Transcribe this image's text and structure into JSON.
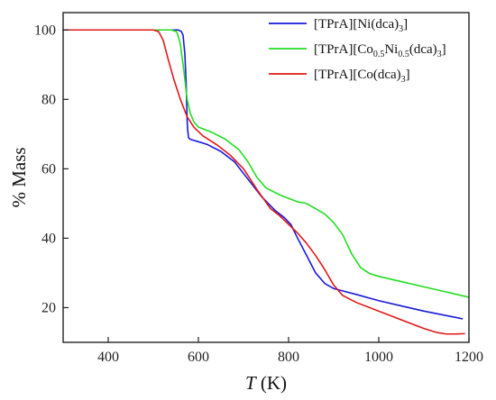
{
  "chart_data": {
    "type": "line",
    "title": "",
    "xlabel_italic": "T",
    "xlabel_unit": " (K)",
    "ylabel": "% Mass",
    "xlim": [
      300,
      1200
    ],
    "ylim": [
      10,
      105
    ],
    "x_ticks": [
      400,
      600,
      800,
      1000,
      1200
    ],
    "y_ticks": [
      20,
      40,
      60,
      80,
      100
    ],
    "grid": false,
    "legend_position": "top-right",
    "series": [
      {
        "name": "[TPrA][Ni(dca)3]",
        "legend_parts": [
          [
            "[TPrA][Ni(dca)",
            ""
          ],
          [
            "3",
            "sub"
          ],
          [
            "]",
            ""
          ]
        ],
        "color": "#1a1adb",
        "points": [
          [
            300,
            100
          ],
          [
            450,
            100
          ],
          [
            540,
            100
          ],
          [
            555,
            100
          ],
          [
            562,
            99.6
          ],
          [
            566,
            98.5
          ],
          [
            570,
            93
          ],
          [
            573,
            84
          ],
          [
            575,
            74
          ],
          [
            576,
            71.5
          ],
          [
            578,
            69
          ],
          [
            582,
            68.5
          ],
          [
            600,
            67.8
          ],
          [
            620,
            67
          ],
          [
            650,
            65
          ],
          [
            680,
            62
          ],
          [
            710,
            57
          ],
          [
            740,
            52
          ],
          [
            770,
            48
          ],
          [
            790,
            46
          ],
          [
            805,
            44
          ],
          [
            820,
            40
          ],
          [
            840,
            35
          ],
          [
            860,
            30
          ],
          [
            880,
            27
          ],
          [
            900,
            25.5
          ],
          [
            950,
            23.8
          ],
          [
            1000,
            22
          ],
          [
            1050,
            20.5
          ],
          [
            1100,
            19
          ],
          [
            1150,
            17.7
          ],
          [
            1185,
            16.8
          ]
        ]
      },
      {
        "name": "[TPrA][Co0.5Ni0.5(dca)3]",
        "legend_parts": [
          [
            "[TPrA][Co",
            ""
          ],
          [
            "0.5",
            "sub"
          ],
          [
            "Ni",
            ""
          ],
          [
            "0.5",
            "sub"
          ],
          [
            "(dca)",
            ""
          ],
          [
            "3",
            "sub"
          ],
          [
            "]",
            ""
          ]
        ],
        "color": "#22dd22",
        "points": [
          [
            300,
            100
          ],
          [
            500,
            100
          ],
          [
            540,
            100
          ],
          [
            552,
            99.5
          ],
          [
            560,
            96
          ],
          [
            568,
            88
          ],
          [
            575,
            80
          ],
          [
            582,
            76
          ],
          [
            590,
            73.5
          ],
          [
            600,
            72
          ],
          [
            630,
            70.5
          ],
          [
            660,
            68.5
          ],
          [
            690,
            65.5
          ],
          [
            710,
            62
          ],
          [
            730,
            57.5
          ],
          [
            750,
            54.5
          ],
          [
            780,
            52.5
          ],
          [
            800,
            51.5
          ],
          [
            820,
            50.5
          ],
          [
            840,
            50
          ],
          [
            860,
            48.5
          ],
          [
            880,
            47
          ],
          [
            900,
            44.5
          ],
          [
            920,
            41
          ],
          [
            940,
            35.5
          ],
          [
            960,
            31.5
          ],
          [
            980,
            29.8
          ],
          [
            1000,
            29
          ],
          [
            1050,
            27.5
          ],
          [
            1100,
            26
          ],
          [
            1150,
            24.5
          ],
          [
            1200,
            23
          ]
        ]
      },
      {
        "name": "[TPrA][Co(dca)3]",
        "legend_parts": [
          [
            "[TPrA][Co(dca)",
            ""
          ],
          [
            "3",
            "sub"
          ],
          [
            "]",
            ""
          ]
        ],
        "color": "#e01818",
        "points": [
          [
            300,
            100
          ],
          [
            500,
            100
          ],
          [
            512,
            99.5
          ],
          [
            522,
            97
          ],
          [
            532,
            92
          ],
          [
            545,
            86
          ],
          [
            560,
            80
          ],
          [
            575,
            75
          ],
          [
            590,
            72
          ],
          [
            610,
            69.5
          ],
          [
            640,
            67
          ],
          [
            670,
            64
          ],
          [
            700,
            60
          ],
          [
            730,
            54
          ],
          [
            760,
            48.5
          ],
          [
            780,
            46.5
          ],
          [
            800,
            44
          ],
          [
            820,
            41.5
          ],
          [
            840,
            38.5
          ],
          [
            860,
            35
          ],
          [
            880,
            31
          ],
          [
            900,
            26.5
          ],
          [
            920,
            23.5
          ],
          [
            950,
            21.5
          ],
          [
            1000,
            19
          ],
          [
            1050,
            16.5
          ],
          [
            1100,
            14
          ],
          [
            1130,
            12.8
          ],
          [
            1150,
            12.4
          ],
          [
            1170,
            12.4
          ],
          [
            1190,
            12.5
          ]
        ]
      }
    ]
  }
}
